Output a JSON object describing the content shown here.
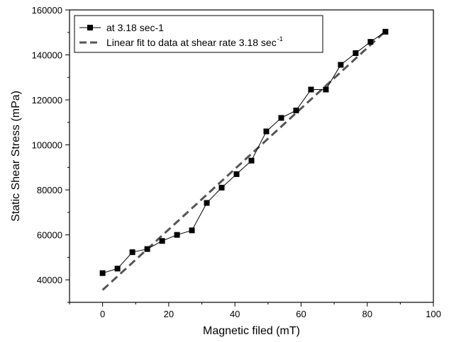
{
  "chart_data": {
    "type": "scatter",
    "title": "",
    "xlabel": "Magnetic filed (mT)",
    "ylabel": "Static Shear Stress (mPa)",
    "xlim": [
      -10,
      100
    ],
    "ylim": [
      30000,
      160000
    ],
    "x_ticks": [
      0,
      20,
      40,
      60,
      80,
      100
    ],
    "y_ticks": [
      40000,
      60000,
      80000,
      100000,
      120000,
      140000,
      160000
    ],
    "grid": false,
    "legend_position": "top-left",
    "series": [
      {
        "name": "at 3.18 sec-1",
        "style": "line-with-square-markers",
        "color": "#000000",
        "x": [
          0,
          4.5,
          9,
          13.5,
          18,
          22.5,
          27,
          31.5,
          36,
          40.5,
          45,
          49.5,
          54,
          58.5,
          63,
          67.5,
          72,
          76.5,
          81,
          85.5
        ],
        "y": [
          43000,
          45000,
          52300,
          53700,
          57300,
          60000,
          62000,
          74200,
          81000,
          87000,
          93000,
          106000,
          112000,
          115300,
          124600,
          124600,
          135600,
          140800,
          145800,
          150300
        ]
      },
      {
        "name": "Linear fit to data at shear rate 3.18 sec",
        "name_sup": "-1",
        "style": "dashed-line",
        "color": "#555555",
        "x": [
          0,
          85.5
        ],
        "y": [
          35500,
          150500
        ]
      }
    ]
  }
}
